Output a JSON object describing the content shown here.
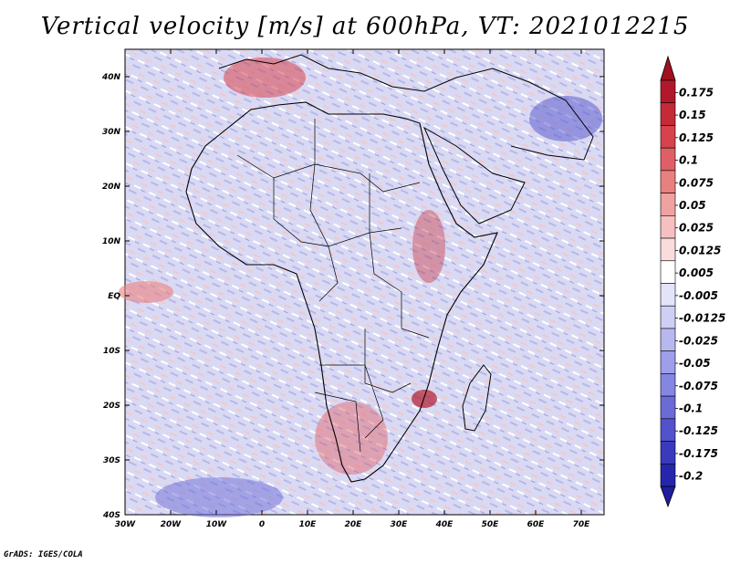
{
  "title": "Vertical velocity [m/s] at 600hPa, VT: 2021012215",
  "footer": "GrADS: IGES/COLA",
  "map": {
    "lat_ticks": [
      "40N",
      "30N",
      "20N",
      "10N",
      "EQ",
      "10S",
      "20S",
      "30S",
      "40S"
    ],
    "lat_values": [
      40,
      30,
      20,
      10,
      0,
      -10,
      -20,
      -30,
      -40
    ],
    "lon_ticks": [
      "30W",
      "20W",
      "10W",
      "0",
      "10E",
      "20E",
      "30E",
      "40E",
      "50E",
      "60E",
      "70E"
    ],
    "lon_values": [
      -30,
      -20,
      -10,
      0,
      10,
      20,
      30,
      40,
      50,
      60,
      70
    ],
    "lon_range": [
      -30,
      75
    ],
    "lat_range": [
      -40,
      45
    ]
  },
  "colorbar": {
    "labels": [
      "0.175",
      "0.15",
      "0.125",
      "0.1",
      "0.075",
      "0.05",
      "0.025",
      "0.0125",
      "0.005",
      "-0.005",
      "-0.0125",
      "-0.025",
      "-0.05",
      "-0.075",
      "-0.1",
      "-0.125",
      "-0.175",
      "-0.2"
    ],
    "colors": [
      "#b2182b",
      "#c52a36",
      "#d6434c",
      "#e05f66",
      "#e98080",
      "#f0a1a1",
      "#f6c0c0",
      "#fbdcdc",
      "#ffffff",
      "#e3e3fa",
      "#cfcff5",
      "#b8b8f0",
      "#9e9eea",
      "#8585e2",
      "#6b6bd8",
      "#5252cc",
      "#3a3abf",
      "#2626ad"
    ],
    "top_arrow_color": "#a01020",
    "bottom_arrow_color": "#1e1e9e"
  }
}
